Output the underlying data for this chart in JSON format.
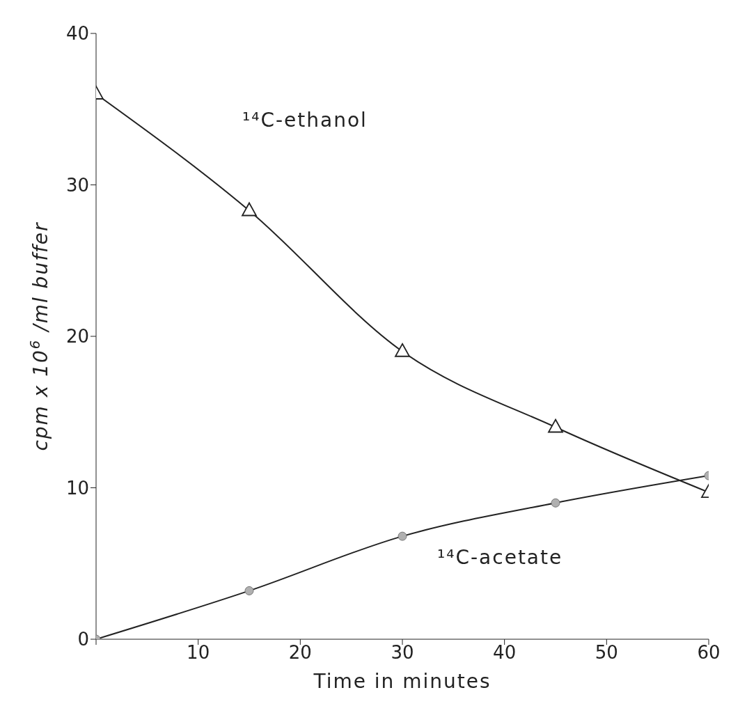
{
  "chart_data": {
    "type": "line",
    "xlabel": "Time in minutes",
    "ylabel": "cpm x 10$^{6}$ /ml buffer",
    "x": [
      0,
      15,
      30,
      45,
      60
    ],
    "series": [
      {
        "name": "¹⁴C-ethanol",
        "color": "#222222",
        "marker": "triangle",
        "values": [
          36,
          28.3,
          19,
          14,
          9.7
        ]
      },
      {
        "name": "¹⁴C-acetate",
        "color": "#222222",
        "marker": "circle",
        "values": [
          0,
          3.2,
          6.8,
          9,
          10.8
        ]
      }
    ],
    "xlim": [
      0,
      60
    ],
    "xticks": [
      {
        "value": 0,
        "label": null
      },
      10,
      20,
      30,
      40,
      50,
      60
    ],
    "ylim": [
      0,
      40
    ],
    "yticks": [
      0,
      10,
      20,
      30,
      40
    ],
    "grid": false,
    "line_style": "solid"
  }
}
